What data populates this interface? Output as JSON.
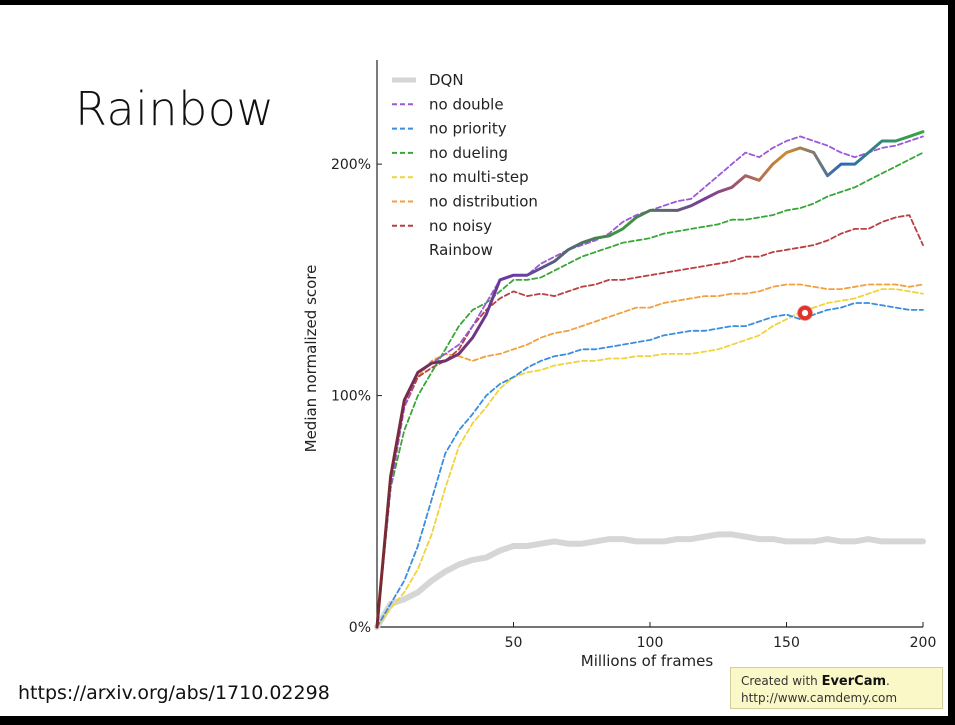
{
  "slide": {
    "title": "Rainbow",
    "reference": "https://arxiv.org/abs/1710.02298"
  },
  "watermark": {
    "line1_prefix": "Created with ",
    "line1_brand": "EverCam",
    "line1_suffix": ".",
    "line2": "http://www.camdemy.com"
  },
  "chart_data": {
    "type": "line",
    "xlabel": "Millions of frames",
    "ylabel": "Median normalized score",
    "xlim": [
      0,
      200
    ],
    "ylim": [
      0,
      245
    ],
    "x_ticks": [
      50,
      100,
      150,
      200
    ],
    "y_ticks": [
      0,
      100,
      200
    ],
    "y_tick_labels": [
      "0%",
      "100%",
      "200%"
    ],
    "grid": false,
    "legend_position": "top-left",
    "x": [
      0,
      5,
      10,
      15,
      20,
      25,
      30,
      35,
      40,
      45,
      50,
      55,
      60,
      65,
      70,
      75,
      80,
      85,
      90,
      95,
      100,
      105,
      110,
      115,
      120,
      125,
      130,
      135,
      140,
      145,
      150,
      155,
      160,
      165,
      170,
      175,
      180,
      185,
      190,
      195,
      200
    ],
    "series": [
      {
        "name": "DQN",
        "color": "#d6d6d6",
        "style": "solid",
        "width": 6,
        "values": [
          0,
          10,
          12,
          15,
          20,
          24,
          27,
          29,
          30,
          33,
          35,
          35,
          36,
          37,
          36,
          36,
          37,
          38,
          38,
          37,
          37,
          37,
          38,
          38,
          39,
          40,
          40,
          39,
          38,
          38,
          37,
          37,
          37,
          38,
          37,
          37,
          38,
          37,
          37,
          37,
          37
        ]
      },
      {
        "name": "no double",
        "color": "#9b59d6",
        "style": "dashed",
        "width": 1.8,
        "values": [
          0,
          60,
          95,
          110,
          114,
          118,
          122,
          130,
          140,
          150,
          152,
          152,
          157,
          160,
          163,
          165,
          167,
          170,
          175,
          178,
          180,
          182,
          184,
          185,
          190,
          195,
          200,
          205,
          203,
          207,
          210,
          212,
          210,
          208,
          205,
          203,
          205,
          207,
          208,
          210,
          212
        ]
      },
      {
        "name": "no priority",
        "color": "#3a8de0",
        "style": "dashed",
        "width": 1.8,
        "values": [
          0,
          10,
          20,
          35,
          55,
          75,
          85,
          92,
          100,
          105,
          108,
          112,
          115,
          117,
          118,
          120,
          120,
          121,
          122,
          123,
          124,
          126,
          127,
          128,
          128,
          129,
          130,
          130,
          132,
          134,
          135,
          133,
          135,
          137,
          138,
          140,
          140,
          139,
          138,
          137,
          137
        ]
      },
      {
        "name": "no dueling",
        "color": "#3aa63a",
        "style": "dashed",
        "width": 1.8,
        "values": [
          0,
          60,
          85,
          100,
          110,
          120,
          130,
          137,
          140,
          145,
          150,
          150,
          151,
          154,
          157,
          160,
          162,
          164,
          166,
          167,
          168,
          170,
          171,
          172,
          173,
          174,
          176,
          176,
          177,
          178,
          180,
          181,
          183,
          186,
          188,
          190,
          193,
          196,
          199,
          202,
          205
        ]
      },
      {
        "name": "no multi-step",
        "color": "#f0d43a",
        "style": "dashed",
        "width": 1.8,
        "values": [
          0,
          8,
          15,
          25,
          40,
          60,
          78,
          88,
          95,
          103,
          108,
          110,
          111,
          113,
          114,
          115,
          115,
          116,
          116,
          117,
          117,
          118,
          118,
          118,
          119,
          120,
          122,
          124,
          126,
          130,
          133,
          136,
          138,
          140,
          141,
          142,
          144,
          146,
          146,
          145,
          144
        ]
      },
      {
        "name": "no distribution",
        "color": "#f0a040",
        "style": "dashed",
        "width": 1.8,
        "values": [
          0,
          60,
          95,
          108,
          115,
          118,
          117,
          115,
          117,
          118,
          120,
          122,
          125,
          127,
          128,
          130,
          132,
          134,
          136,
          138,
          138,
          140,
          141,
          142,
          143,
          143,
          144,
          144,
          145,
          147,
          148,
          148,
          147,
          146,
          146,
          147,
          148,
          148,
          148,
          147,
          148
        ]
      },
      {
        "name": "no noisy",
        "color": "#b84040",
        "style": "dashed",
        "width": 1.8,
        "values": [
          0,
          62,
          95,
          108,
          112,
          115,
          120,
          130,
          137,
          142,
          145,
          143,
          144,
          143,
          145,
          147,
          148,
          150,
          150,
          151,
          152,
          153,
          154,
          155,
          156,
          157,
          158,
          160,
          160,
          162,
          163,
          164,
          165,
          167,
          170,
          172,
          172,
          175,
          177,
          178,
          165
        ]
      },
      {
        "name": "Rainbow",
        "color": "rainbow",
        "style": "solid",
        "width": 3,
        "values": [
          0,
          65,
          98,
          110,
          114,
          115,
          118,
          125,
          135,
          150,
          152,
          152,
          155,
          158,
          163,
          166,
          168,
          169,
          172,
          177,
          180,
          180,
          180,
          182,
          185,
          188,
          190,
          195,
          193,
          200,
          205,
          207,
          205,
          195,
          200,
          200,
          205,
          210,
          210,
          212,
          214
        ]
      }
    ]
  }
}
